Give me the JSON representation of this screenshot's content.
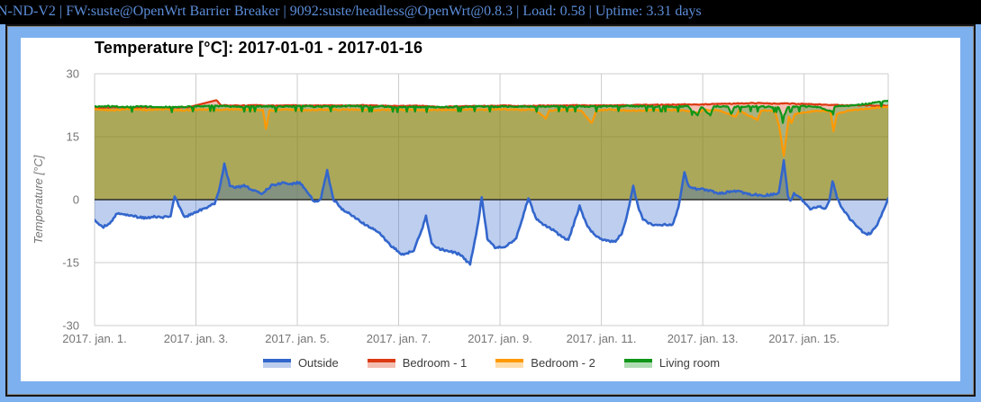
{
  "topbar": {
    "text": "N-ND-V2 | FW:suste@OpenWrt Barrier Breaker | 9092:suste/headless@OpenWrt@0.8.3 | Load: 0.58 | Uptime: 3.31 days"
  },
  "colors": {
    "frame_blue": "#7db0ef",
    "topbar_text": "#5b8dd9",
    "panel_bg": "#ffffff"
  },
  "chart": {
    "title": "Temperature [°C]: 2017-01-01 - 2017-01-16",
    "y_axis_title": "Temperature [°C]"
  },
  "chart_data": {
    "type": "area",
    "title": "Temperature [°C]: 2017-01-01 - 2017-01-16",
    "xlabel": "",
    "ylabel": "Temperature [°C]",
    "ylim": [
      -30,
      30
    ],
    "xlim_days": [
      0,
      15.66
    ],
    "y_ticks": [
      30,
      15,
      0,
      -15,
      -30
    ],
    "x_gridline_days": [
      0,
      2,
      4,
      6,
      8,
      10,
      12,
      14,
      15.66
    ],
    "x_ticks": [
      {
        "day": 0,
        "label": "2017. jan. 1."
      },
      {
        "day": 2,
        "label": "2017. jan. 3."
      },
      {
        "day": 4,
        "label": "2017. jan. 5."
      },
      {
        "day": 6,
        "label": "2017. jan. 7."
      },
      {
        "day": 8,
        "label": "2017. jan. 9."
      },
      {
        "day": 10,
        "label": "2017. jan. 11."
      },
      {
        "day": 12,
        "label": "2017. jan. 13."
      },
      {
        "day": 14,
        "label": "2017. jan. 15."
      }
    ],
    "grid_color": "#cccccc",
    "zero_line_color": "#2b2b2b",
    "axis_text_color": "#757575",
    "fill_opacity": 0.32,
    "gap_threshold_days": 0.55,
    "legend_position": "bottom",
    "legend": [
      {
        "label": "Outside",
        "color": "#3366cc"
      },
      {
        "label": "Bedroom - 1",
        "color": "#dc3912"
      },
      {
        "label": "Bedroom - 2",
        "color": "#ff9900"
      },
      {
        "label": "Living room",
        "color": "#109618"
      }
    ],
    "series": [
      {
        "name": "Bedroom - 1",
        "color": "#dc3912",
        "line_width": 2.2,
        "jitter": 0.1,
        "points": [
          [
            0,
            21.9
          ],
          [
            0.35,
            22.0
          ],
          [
            0.7,
            21.9
          ],
          [
            1.05,
            22.0
          ],
          [
            1.4,
            21.9
          ],
          [
            1.84,
            22.0
          ],
          [
            2.4,
            23.7
          ],
          [
            2.5,
            22.5
          ],
          [
            2.85,
            22.4
          ],
          [
            3.2,
            22.5
          ],
          [
            3.55,
            22.4
          ],
          [
            3.9,
            22.5
          ],
          [
            4.25,
            22.4
          ],
          [
            4.6,
            22.5
          ],
          [
            4.95,
            22.4
          ],
          [
            5.3,
            22.5
          ],
          [
            5.65,
            22.4
          ],
          [
            6.0,
            22.3
          ],
          [
            6.35,
            22.4
          ],
          [
            6.7,
            22.2
          ],
          [
            6.85,
            21.9
          ],
          [
            7.05,
            22.2
          ],
          [
            7.4,
            22.3
          ],
          [
            7.75,
            22.3
          ],
          [
            8.1,
            22.4
          ],
          [
            8.45,
            22.3
          ],
          [
            8.8,
            22.4
          ],
          [
            9.15,
            22.4
          ],
          [
            9.5,
            22.5
          ],
          [
            9.85,
            22.4
          ],
          [
            10.2,
            22.5
          ],
          [
            10.55,
            22.5
          ],
          [
            10.9,
            22.6
          ],
          [
            11.25,
            22.6
          ],
          [
            11.6,
            22.7
          ],
          [
            11.95,
            22.7
          ],
          [
            12.3,
            22.8
          ],
          [
            12.65,
            22.9
          ],
          [
            13.0,
            23.0
          ],
          [
            13.35,
            22.9
          ],
          [
            13.7,
            22.9
          ],
          [
            14.05,
            22.8
          ],
          [
            14.4,
            22.6
          ],
          [
            14.75,
            22.5
          ],
          [
            15.1,
            22.5
          ],
          [
            15.4,
            22.4
          ],
          [
            15.66,
            22.4
          ]
        ]
      },
      {
        "name": "Bedroom - 2",
        "color": "#ff9900",
        "line_width": 2.2,
        "jitter": 0.15,
        "points": [
          [
            0,
            21.5
          ],
          [
            0.35,
            21.3
          ],
          [
            0.7,
            21.6
          ],
          [
            1.05,
            21.4
          ],
          [
            1.4,
            21.5
          ],
          [
            1.75,
            21.3
          ],
          [
            2.1,
            21.5
          ],
          [
            2.45,
            21.4
          ],
          [
            2.8,
            21.5
          ],
          [
            3.1,
            21.4
          ],
          [
            3.32,
            21.4
          ],
          [
            3.38,
            16.8
          ],
          [
            3.45,
            21.3
          ],
          [
            3.8,
            21.5
          ],
          [
            4.15,
            21.3
          ],
          [
            4.5,
            21.5
          ],
          [
            4.85,
            21.4
          ],
          [
            5.2,
            21.5
          ],
          [
            5.55,
            21.3
          ],
          [
            5.9,
            21.5
          ],
          [
            6.25,
            21.4
          ],
          [
            6.6,
            21.3
          ],
          [
            6.95,
            21.4
          ],
          [
            7.3,
            21.5
          ],
          [
            7.65,
            21.4
          ],
          [
            8.0,
            21.5
          ],
          [
            8.35,
            21.4
          ],
          [
            8.7,
            21.4
          ],
          [
            8.9,
            19.3
          ],
          [
            8.98,
            21.3
          ],
          [
            9.3,
            21.4
          ],
          [
            9.6,
            21.3
          ],
          [
            9.81,
            18.2
          ],
          [
            9.9,
            21.3
          ],
          [
            10.2,
            21.4
          ],
          [
            10.55,
            21.2
          ],
          [
            10.9,
            21.3
          ],
          [
            11.25,
            21.4
          ],
          [
            11.6,
            21.3
          ],
          [
            11.91,
            20.7
          ],
          [
            12.0,
            21.4
          ],
          [
            12.3,
            21.3
          ],
          [
            12.65,
            19.8
          ],
          [
            12.72,
            21.3
          ],
          [
            13.08,
            19.0
          ],
          [
            13.15,
            21.2
          ],
          [
            13.42,
            21.2
          ],
          [
            13.5,
            18.0
          ],
          [
            13.6,
            10.5
          ],
          [
            13.7,
            19.8
          ],
          [
            13.75,
            18.3
          ],
          [
            13.82,
            20.3
          ],
          [
            13.95,
            20.8
          ],
          [
            14.15,
            21.0
          ],
          [
            14.35,
            21.2
          ],
          [
            14.52,
            21.0
          ],
          [
            14.58,
            16.2
          ],
          [
            14.65,
            20.5
          ],
          [
            14.85,
            21.2
          ],
          [
            15.1,
            21.5
          ],
          [
            15.35,
            21.8
          ],
          [
            15.66,
            22.2
          ]
        ]
      },
      {
        "name": "Living room",
        "color": "#109618",
        "line_width": 2.2,
        "jitter": 0.35,
        "jitter_mode": "down",
        "points": [
          [
            0,
            22.3
          ],
          [
            0.3,
            22.4
          ],
          [
            0.6,
            22.2
          ],
          [
            0.9,
            22.4
          ],
          [
            1.2,
            22.3
          ],
          [
            1.5,
            22.2
          ],
          [
            1.8,
            22.3
          ],
          [
            2.1,
            22.4
          ],
          [
            2.4,
            22.5
          ],
          [
            2.7,
            22.4
          ],
          [
            3.0,
            22.3
          ],
          [
            3.3,
            22.4
          ],
          [
            3.6,
            22.3
          ],
          [
            3.9,
            22.4
          ],
          [
            4.2,
            22.4
          ],
          [
            4.5,
            22.3
          ],
          [
            4.8,
            22.4
          ],
          [
            5.1,
            22.5
          ],
          [
            5.4,
            22.3
          ],
          [
            5.7,
            22.4
          ],
          [
            6.0,
            22.2
          ],
          [
            6.3,
            22.3
          ],
          [
            6.6,
            22.2
          ],
          [
            6.9,
            22.2
          ],
          [
            7.2,
            22.3
          ],
          [
            7.5,
            22.4
          ],
          [
            7.8,
            22.3
          ],
          [
            8.1,
            22.4
          ],
          [
            8.4,
            22.3
          ],
          [
            8.7,
            22.3
          ],
          [
            9.0,
            22.4
          ],
          [
            9.3,
            22.3
          ],
          [
            9.6,
            22.4
          ],
          [
            9.9,
            22.3
          ],
          [
            10.2,
            22.4
          ],
          [
            10.5,
            22.5
          ],
          [
            10.8,
            22.4
          ],
          [
            11.1,
            22.4
          ],
          [
            11.4,
            22.3
          ],
          [
            11.7,
            22.4
          ],
          [
            11.9,
            20.3
          ],
          [
            11.97,
            22.3
          ],
          [
            12.15,
            20.2
          ],
          [
            12.22,
            22.4
          ],
          [
            12.5,
            22.3
          ],
          [
            12.56,
            20.5
          ],
          [
            12.63,
            22.3
          ],
          [
            12.9,
            22.4
          ],
          [
            13.2,
            22.3
          ],
          [
            13.5,
            22.2
          ],
          [
            13.58,
            19.6
          ],
          [
            13.68,
            22.2
          ],
          [
            13.95,
            22.4
          ],
          [
            14.25,
            22.3
          ],
          [
            14.55,
            21.2
          ],
          [
            14.62,
            22.4
          ],
          [
            14.9,
            22.6
          ],
          [
            15.15,
            22.9
          ],
          [
            15.4,
            23.3
          ],
          [
            15.55,
            23.5
          ],
          [
            15.66,
            23.6
          ]
        ]
      },
      {
        "name": "Outside",
        "color": "#3366cc",
        "line_width": 2.6,
        "jitter": 0.25,
        "points": [
          [
            0,
            -5.0
          ],
          [
            0.15,
            -6.6
          ],
          [
            0.3,
            -5.8
          ],
          [
            0.45,
            -3.2
          ],
          [
            0.6,
            -3.6
          ],
          [
            0.8,
            -4.0
          ],
          [
            1.0,
            -4.4
          ],
          [
            1.2,
            -4.0
          ],
          [
            1.35,
            -4.3
          ],
          [
            1.5,
            -3.9
          ],
          [
            1.58,
            0.9
          ],
          [
            1.66,
            -1.5
          ],
          [
            1.78,
            -4.1
          ],
          [
            1.84,
            -3.9
          ],
          [
            2.37,
            -1.0
          ],
          [
            2.45,
            2.0
          ],
          [
            2.56,
            8.4
          ],
          [
            2.67,
            3.4
          ],
          [
            2.8,
            2.9
          ],
          [
            2.95,
            3.3
          ],
          [
            3.1,
            2.4
          ],
          [
            3.3,
            1.5
          ],
          [
            3.5,
            3.4
          ],
          [
            3.7,
            4.0
          ],
          [
            3.9,
            3.8
          ],
          [
            4.05,
            4.1
          ],
          [
            4.17,
            2.4
          ],
          [
            4.3,
            0.0
          ],
          [
            4.4,
            -0.6
          ],
          [
            4.47,
            0.5
          ],
          [
            4.59,
            6.9
          ],
          [
            4.66,
            3.0
          ],
          [
            4.72,
            0.0
          ],
          [
            4.9,
            -2.5
          ],
          [
            5.1,
            -3.9
          ],
          [
            5.35,
            -6.0
          ],
          [
            5.6,
            -7.8
          ],
          [
            5.85,
            -11.0
          ],
          [
            6.1,
            -13.3
          ],
          [
            6.3,
            -12.0
          ],
          [
            6.45,
            -7.5
          ],
          [
            6.54,
            -3.9
          ],
          [
            6.65,
            -10.5
          ],
          [
            6.75,
            -11.6
          ],
          [
            7.0,
            -12.3
          ],
          [
            7.2,
            -13.0
          ],
          [
            7.41,
            -15.4
          ],
          [
            7.55,
            -7.0
          ],
          [
            7.64,
            0.4
          ],
          [
            7.75,
            -9.3
          ],
          [
            7.9,
            -11.5
          ],
          [
            8.1,
            -11.2
          ],
          [
            8.32,
            -9.3
          ],
          [
            8.45,
            -4.0
          ],
          [
            8.56,
            0.3
          ],
          [
            8.7,
            -4.3
          ],
          [
            8.85,
            -5.9
          ],
          [
            9.0,
            -6.8
          ],
          [
            9.15,
            -8.3
          ],
          [
            9.35,
            -9.6
          ],
          [
            9.45,
            -6.0
          ],
          [
            9.57,
            -1.5
          ],
          [
            9.7,
            -5.7
          ],
          [
            9.85,
            -8.3
          ],
          [
            10.0,
            -9.4
          ],
          [
            10.15,
            -9.8
          ],
          [
            10.28,
            -10.1
          ],
          [
            10.4,
            -8.0
          ],
          [
            10.5,
            -4.0
          ],
          [
            10.63,
            3.1
          ],
          [
            10.72,
            -1.5
          ],
          [
            10.82,
            -4.8
          ],
          [
            10.95,
            -5.6
          ],
          [
            11.1,
            -6.2
          ],
          [
            11.25,
            -5.9
          ],
          [
            11.4,
            -6.0
          ],
          [
            11.52,
            -2.0
          ],
          [
            11.64,
            6.4
          ],
          [
            11.73,
            3.0
          ],
          [
            11.85,
            2.6
          ],
          [
            12.0,
            2.4
          ],
          [
            12.18,
            2.0
          ],
          [
            12.36,
            1.5
          ],
          [
            12.55,
            1.9
          ],
          [
            12.7,
            2.0
          ],
          [
            12.85,
            1.4
          ],
          [
            13.0,
            1.2
          ],
          [
            13.2,
            1.0
          ],
          [
            13.35,
            1.2
          ],
          [
            13.5,
            1.6
          ],
          [
            13.6,
            9.3
          ],
          [
            13.68,
            1.1
          ],
          [
            13.73,
            -0.4
          ],
          [
            13.8,
            1.4
          ],
          [
            13.9,
            0.7
          ],
          [
            14.0,
            -0.7
          ],
          [
            14.12,
            -2.1
          ],
          [
            14.22,
            -1.8
          ],
          [
            14.32,
            -1.6
          ],
          [
            14.42,
            -2.2
          ],
          [
            14.5,
            -0.4
          ],
          [
            14.56,
            4.5
          ],
          [
            14.65,
            0.4
          ],
          [
            14.75,
            -2.0
          ],
          [
            14.9,
            -4.5
          ],
          [
            15.05,
            -6.5
          ],
          [
            15.2,
            -8.2
          ],
          [
            15.32,
            -8.0
          ],
          [
            15.42,
            -6.5
          ],
          [
            15.52,
            -4.0
          ],
          [
            15.6,
            -1.5
          ],
          [
            15.66,
            0.3
          ]
        ]
      }
    ]
  }
}
